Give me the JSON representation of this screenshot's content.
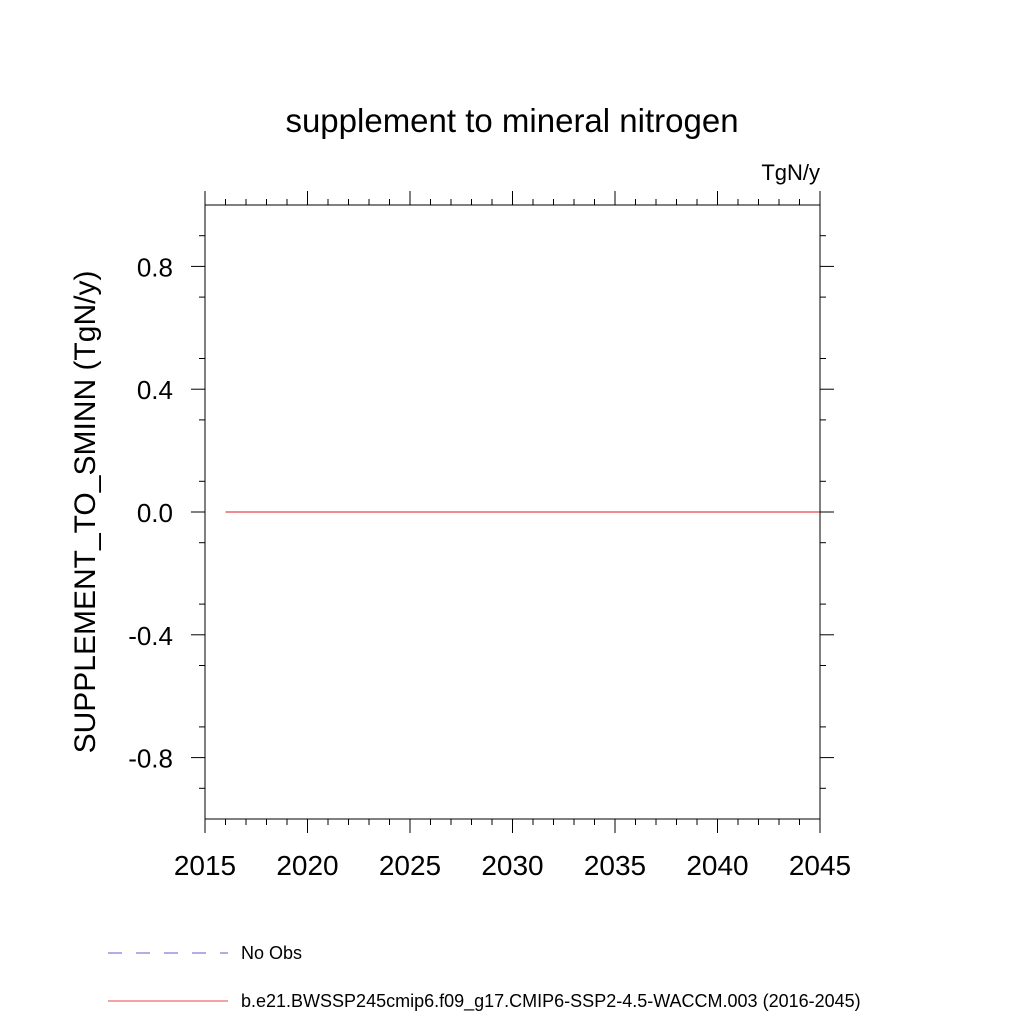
{
  "chart_data": {
    "type": "line",
    "title": "supplement to mineral nitrogen",
    "units_label": "TgN/y",
    "ylabel": "SUPPLEMENT_TO_SMINN  (TgN/y)",
    "xlabel": "",
    "xlim": [
      2015,
      2045
    ],
    "ylim": [
      -1.0,
      1.0
    ],
    "x_ticks": [
      2015,
      2020,
      2025,
      2030,
      2035,
      2040,
      2045
    ],
    "x_tick_labels": [
      "2015",
      "2020",
      "2025",
      "2030",
      "2035",
      "2040",
      "2045"
    ],
    "y_ticks": [
      -0.8,
      -0.4,
      0.0,
      0.4,
      0.8
    ],
    "y_tick_labels": [
      "-0.8",
      "-0.4",
      "0.0",
      "0.4",
      "0.8"
    ],
    "grid": false,
    "legend_placement": "bottom",
    "series": [
      {
        "name": "No Obs",
        "color": "#6a5acd",
        "dash": "dashed",
        "x": [],
        "values": []
      },
      {
        "name": "b.e21.BWSSP245cmip6.f09_g17.CMIP6-SSP2-4.5-WACCM.003 (2016-2045)",
        "color": "#e8454c",
        "dash": "solid",
        "x": [
          2016,
          2020,
          2025,
          2030,
          2035,
          2040,
          2045
        ],
        "values": [
          0,
          0,
          0,
          0,
          0,
          0,
          0
        ]
      }
    ]
  }
}
